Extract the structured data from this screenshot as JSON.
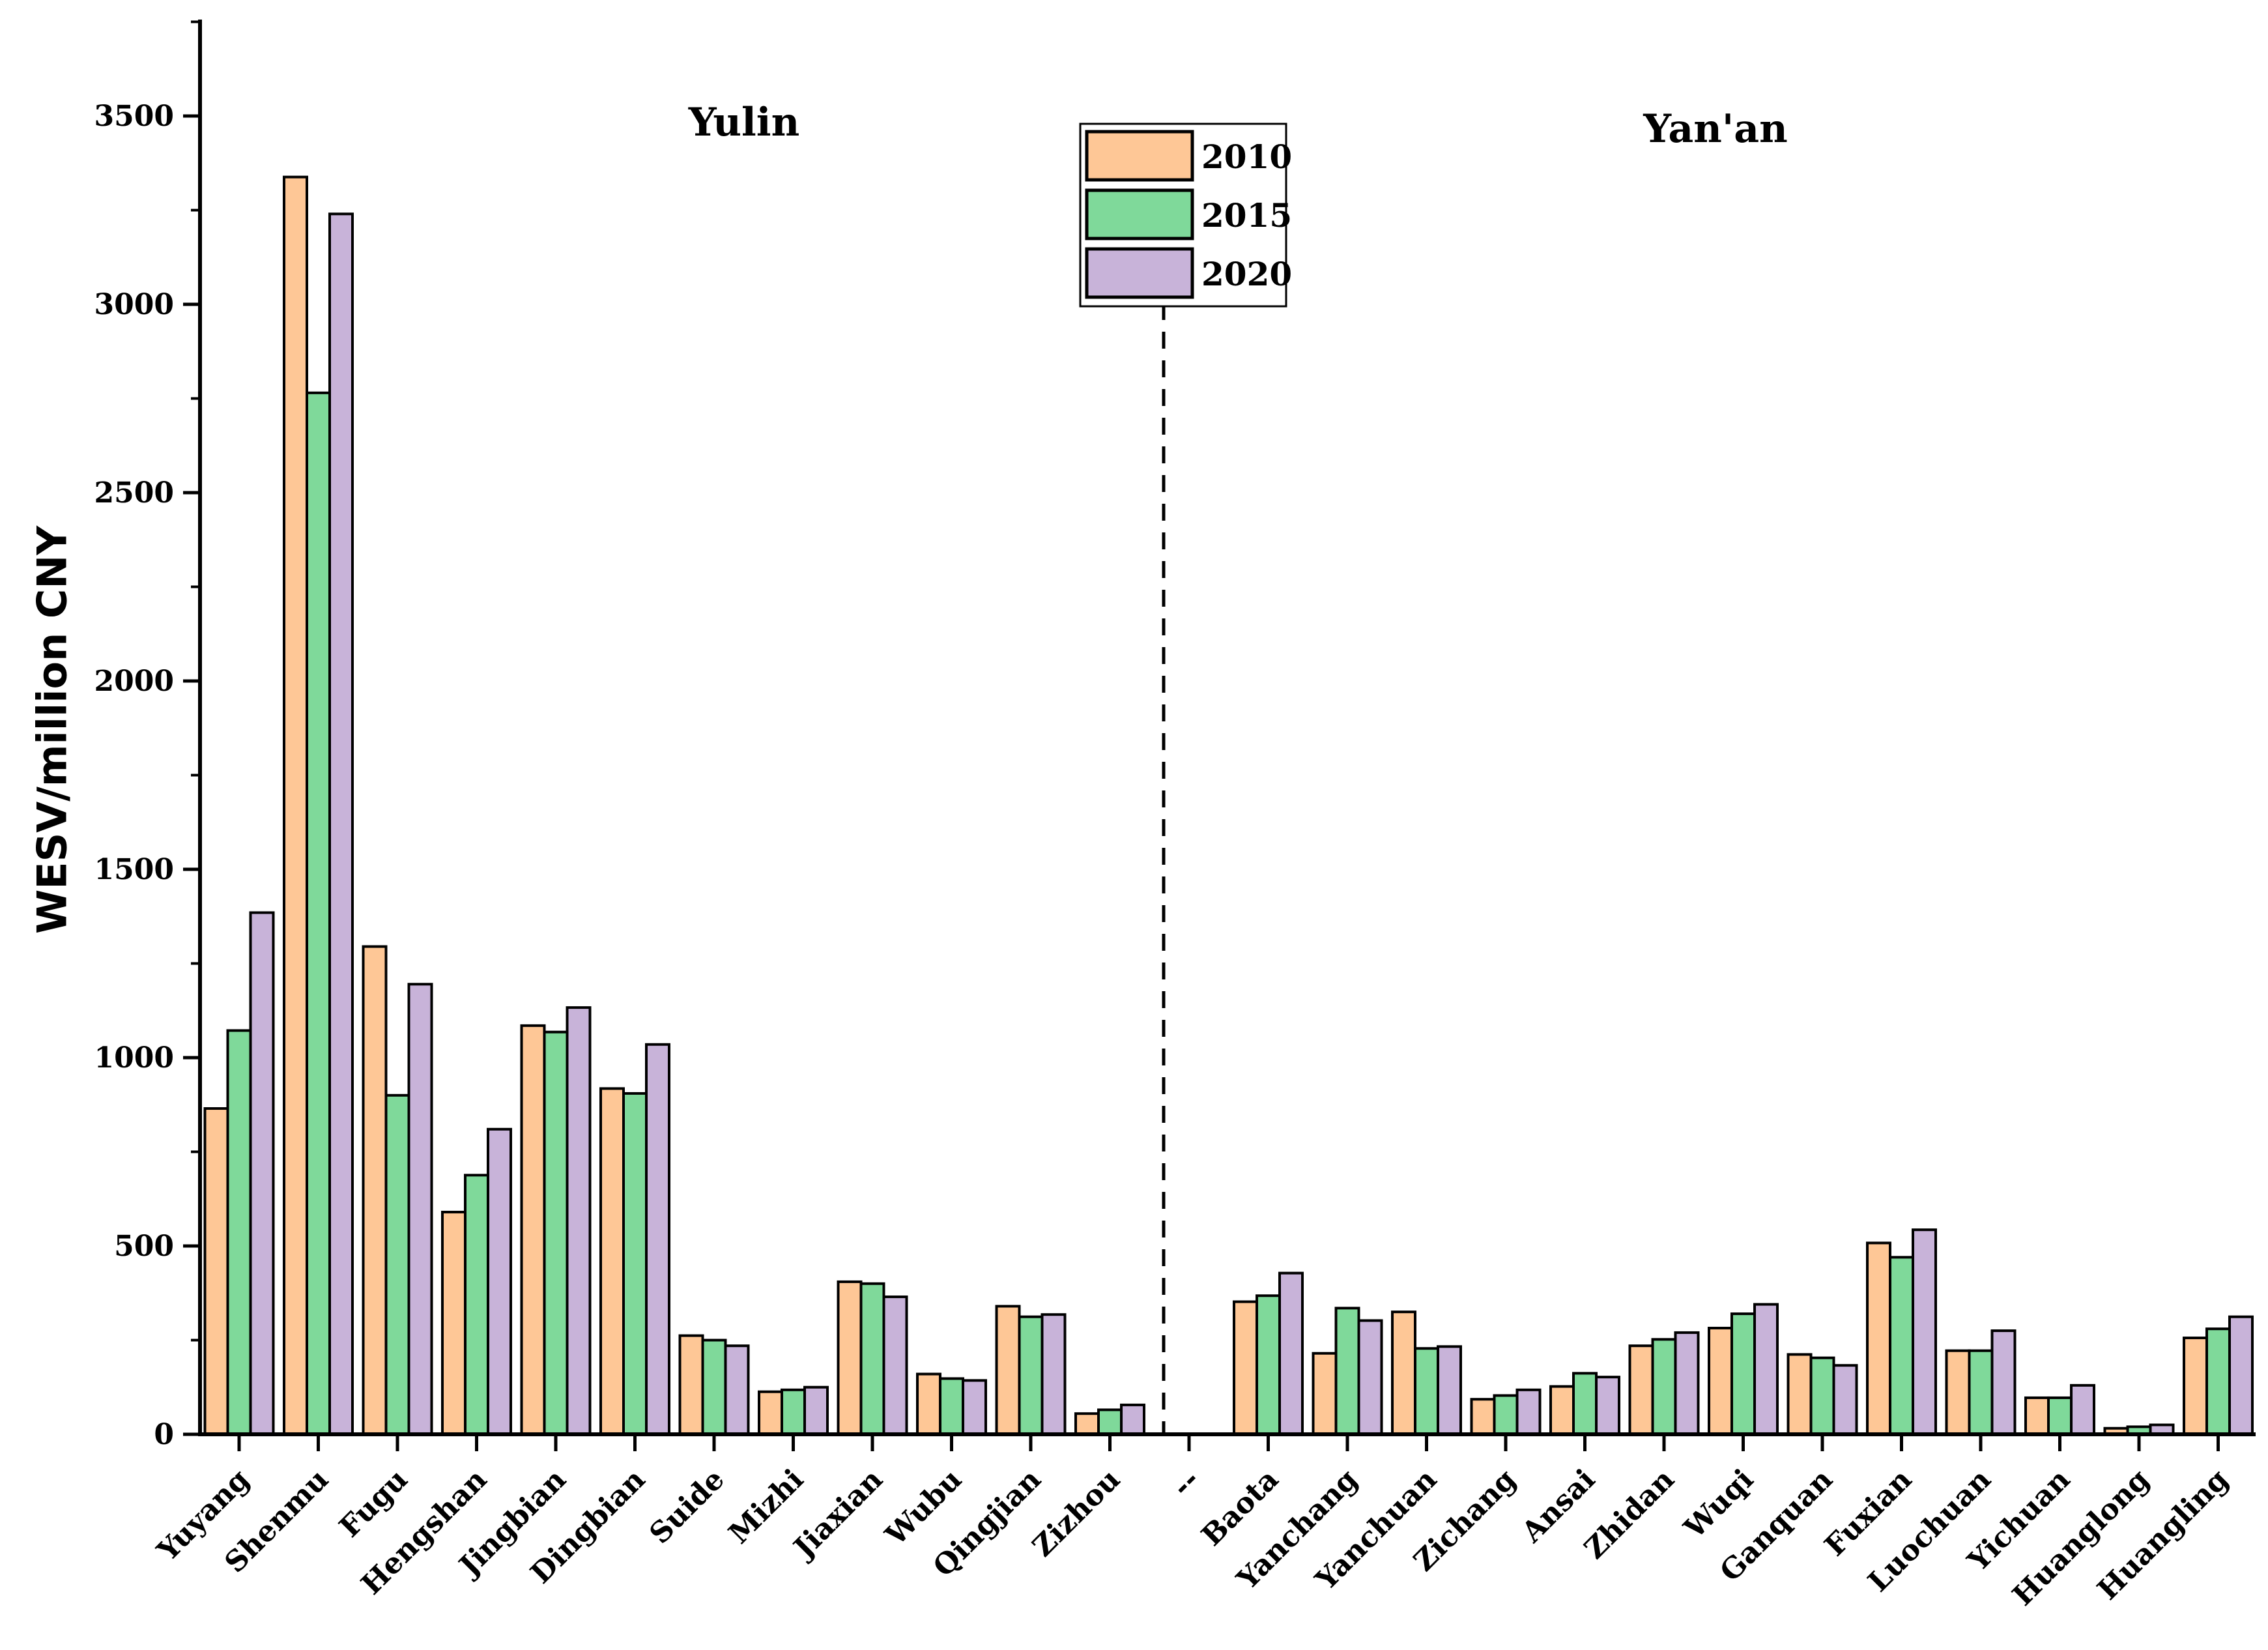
{
  "chart_data": {
    "type": "bar",
    "ylabel": "WESV/million CNY",
    "xlabel": "",
    "ylim": [
      0,
      3750
    ],
    "yticks": [
      0,
      500,
      1000,
      1500,
      2000,
      2500,
      3000,
      3500
    ],
    "region_labels": [
      "Yulin",
      "Yan'an"
    ],
    "categories": [
      "Yuyang",
      "Shenmu",
      "Fugu",
      "Hengshan",
      "Jingbian",
      "Dingbian",
      "Suide",
      "Mizhi",
      "Jiaxian",
      "Wubu",
      "Qingjian",
      "Zizhou",
      "--",
      "Baota",
      "Yanchang",
      "Yanchuan",
      "Zichang",
      "Ansai",
      "Zhidan",
      "Wuqi",
      "Ganquan",
      "Fuxian",
      "Luochuan",
      "Yichuan",
      "Huanglong",
      "Huangling"
    ],
    "series": [
      {
        "name": "2010",
        "color": "#fec796",
        "values": [
          865,
          3338,
          1295,
          590,
          1085,
          918,
          262,
          113,
          405,
          160,
          340,
          55,
          0,
          352,
          215,
          325,
          93,
          127,
          235,
          282,
          212,
          508,
          222,
          97,
          16,
          256
        ]
      },
      {
        "name": "2015",
        "color": "#7fd99a",
        "values": [
          1072,
          2765,
          900,
          688,
          1068,
          905,
          250,
          118,
          400,
          148,
          312,
          65,
          0,
          368,
          335,
          228,
          103,
          162,
          252,
          320,
          203,
          470,
          222,
          97,
          20,
          280
        ]
      },
      {
        "name": "2020",
        "color": "#c8b3d9",
        "values": [
          1385,
          3240,
          1195,
          810,
          1133,
          1035,
          235,
          125,
          365,
          143,
          318,
          78,
          0,
          428,
          302,
          233,
          118,
          152,
          270,
          345,
          183,
          543,
          275,
          130,
          25,
          312
        ]
      }
    ],
    "legend_position": "top-center"
  }
}
